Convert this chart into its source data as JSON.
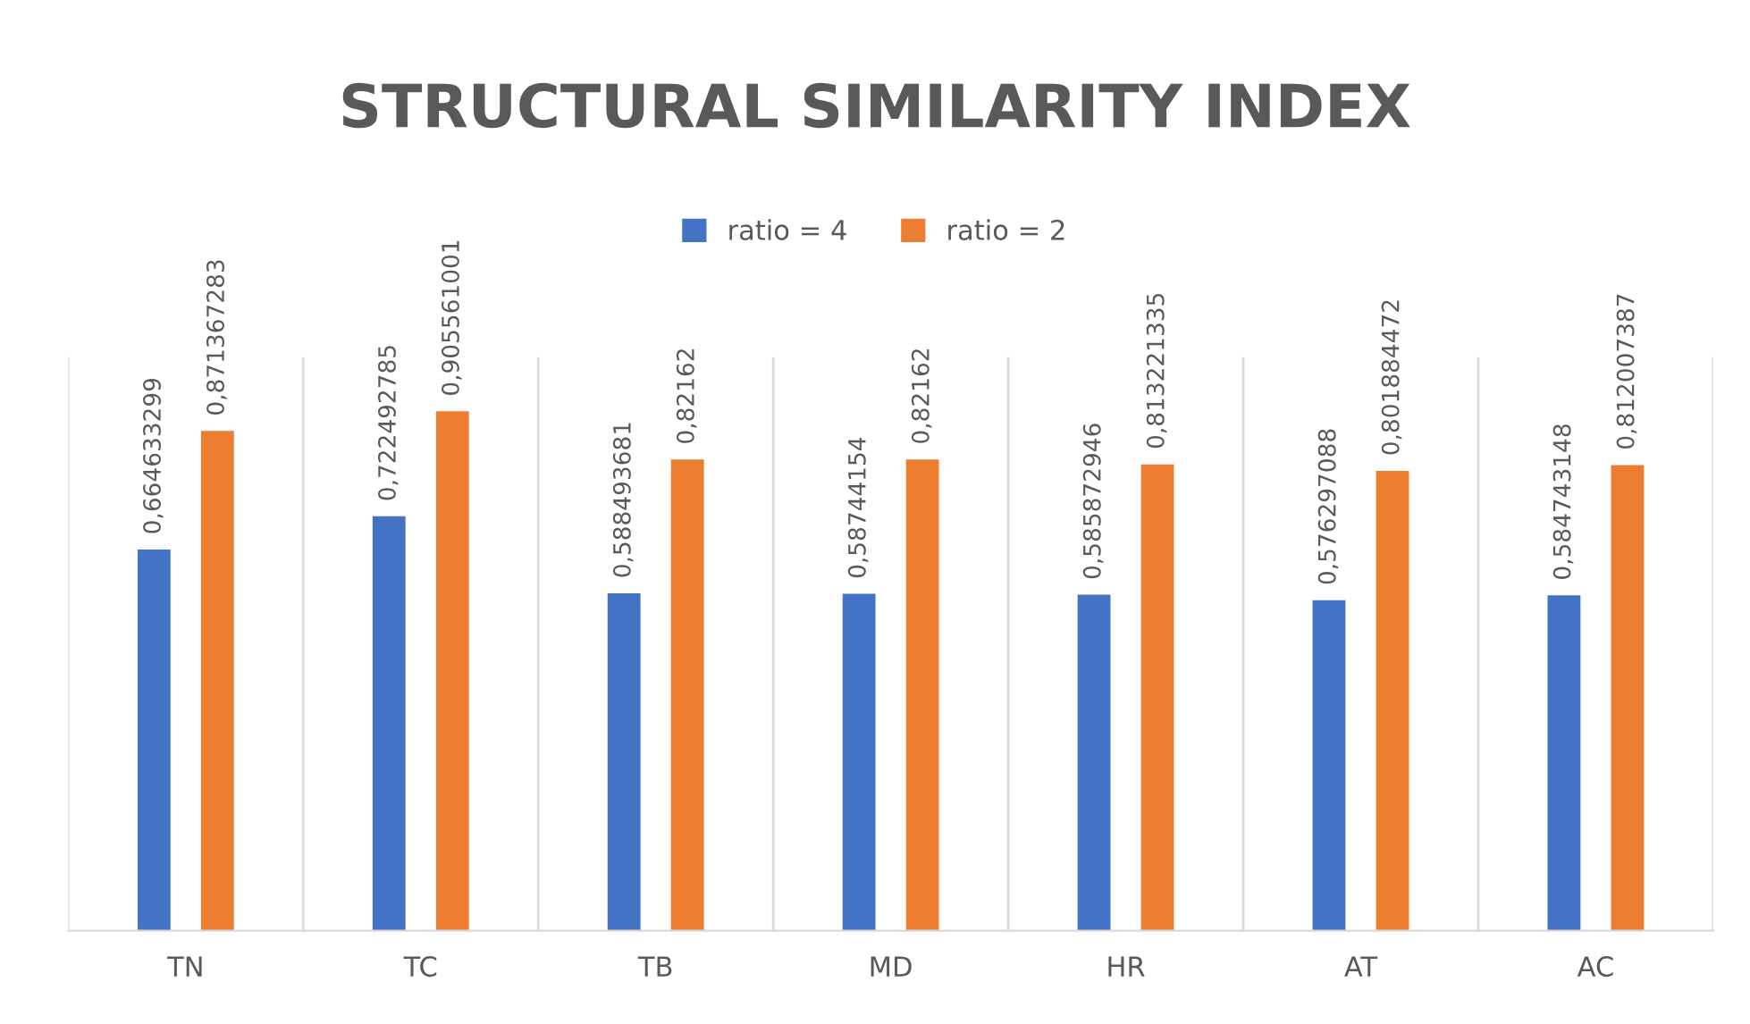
{
  "chart_data": {
    "type": "bar",
    "title": "STRUCTURAL SIMILARITY INDEX",
    "categories": [
      "TN",
      "TC",
      "TB",
      "MD",
      "HR",
      "AT",
      "AC"
    ],
    "series": [
      {
        "name": "ratio = 4",
        "color": "#4472c4",
        "values": [
          0.664633299,
          0.722492785,
          0.588493681,
          0.58744154,
          0.585872946,
          0.576297088,
          0.584743148
        ],
        "value_labels": [
          "0,664633299",
          "0,722492785",
          "0,588493681",
          "0,58744154",
          "0,585872946",
          "0,576297088",
          "0,584743148"
        ]
      },
      {
        "name": "ratio = 2",
        "color": "#ed7d31",
        "values": [
          0.871367283,
          0.905561001,
          0.82162,
          0.82162,
          0.813221335,
          0.801884472,
          0.812007387
        ],
        "value_labels": [
          "0,871367283",
          "0,905561001",
          "0,82162",
          "0,82162",
          "0,813221335",
          "0,801884472",
          "0,812007387"
        ]
      }
    ],
    "ylim": [
      0,
      1
    ],
    "grid": "x",
    "legend": "top",
    "tick_labels": "x"
  }
}
